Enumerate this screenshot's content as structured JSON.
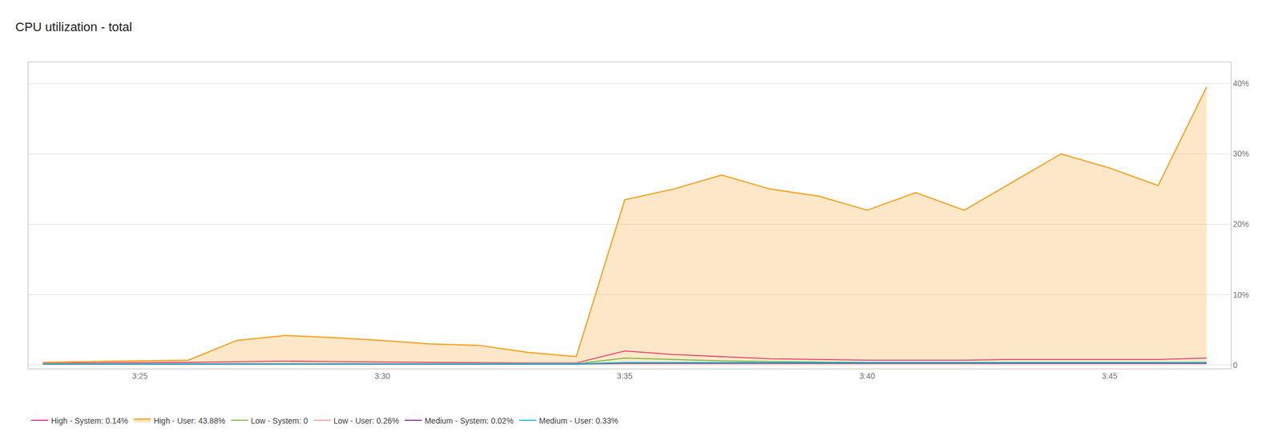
{
  "chart_data": {
    "type": "line",
    "title": "CPU utilization - total",
    "x": [
      0,
      1,
      2,
      3,
      4,
      5,
      6,
      7,
      8,
      9,
      10,
      11,
      12,
      13,
      14,
      15,
      16,
      17,
      18,
      19,
      20,
      21,
      22,
      23,
      24
    ],
    "xlim": [
      -0.3,
      24.5
    ],
    "xticks": [
      {
        "value": 2,
        "label": "3:25"
      },
      {
        "value": 7,
        "label": "3:30"
      },
      {
        "value": 12,
        "label": "3:35"
      },
      {
        "value": 17,
        "label": "3:40"
      },
      {
        "value": 22,
        "label": "3:45"
      }
    ],
    "ylim": [
      -0.5,
      43
    ],
    "yticks": [
      0,
      {
        "value": 10,
        "label": "10%"
      },
      {
        "value": 20,
        "label": "20%"
      },
      {
        "value": 30,
        "label": "30%"
      },
      {
        "value": 40,
        "label": "40%"
      }
    ],
    "grid": "y",
    "legend": "bottom",
    "series": [
      {
        "name": "High - System: 0.14%",
        "color": "#e91e8c",
        "type": "line",
        "values": [
          0.3,
          0.3,
          0.35,
          0.4,
          0.5,
          0.55,
          0.5,
          0.45,
          0.35,
          0.3,
          0.3,
          0.3,
          2.0,
          1.5,
          1.2,
          0.9,
          0.8,
          0.7,
          0.7,
          0.7,
          0.8,
          0.8,
          0.75,
          0.8,
          1.0
        ]
      },
      {
        "name": "High - User: 43.88%",
        "color": "#f4a426",
        "type": "area",
        "values": [
          0.4,
          0.5,
          0.6,
          0.7,
          3.5,
          4.2,
          3.9,
          3.5,
          3.0,
          2.8,
          1.8,
          1.2,
          23.5,
          25.0,
          27.0,
          25.0,
          24.0,
          22.0,
          24.5,
          22.0,
          26.0,
          30.0,
          28.0,
          25.5,
          39.5
        ]
      },
      {
        "name": "Low - System: 0",
        "color": "#7cb342",
        "type": "line",
        "values": [
          0.18,
          0.18,
          0.18,
          0.18,
          0.18,
          0.18,
          0.18,
          0.18,
          0.18,
          0.18,
          0.18,
          0.18,
          1.0,
          0.8,
          0.6,
          0.5,
          0.4,
          0.35,
          0.35,
          0.35,
          0.35,
          0.35,
          0.35,
          0.35,
          0.35
        ]
      },
      {
        "name": "Low - User: 0.26%",
        "color": "#ef9a9a",
        "type": "line",
        "values": [
          0.2,
          0.2,
          0.2,
          0.2,
          0.2,
          0.2,
          0.2,
          0.2,
          0.2,
          0.2,
          0.2,
          0.2,
          0.3,
          0.3,
          0.3,
          0.3,
          0.3,
          0.3,
          0.3,
          0.3,
          0.3,
          0.3,
          0.3,
          0.3,
          0.3
        ]
      },
      {
        "name": "Medium - System: 0.02%",
        "color": "#7b1fa2",
        "type": "line",
        "values": [
          0.15,
          0.15,
          0.15,
          0.15,
          0.15,
          0.15,
          0.15,
          0.15,
          0.15,
          0.15,
          0.15,
          0.15,
          0.25,
          0.25,
          0.25,
          0.25,
          0.25,
          0.25,
          0.25,
          0.25,
          0.25,
          0.25,
          0.25,
          0.25,
          0.25
        ]
      },
      {
        "name": "Medium - User: 0.33%",
        "color": "#00bcd4",
        "type": "line",
        "values": [
          0.18,
          0.18,
          0.18,
          0.18,
          0.18,
          0.18,
          0.18,
          0.18,
          0.18,
          0.18,
          0.18,
          0.18,
          0.35,
          0.35,
          0.35,
          0.35,
          0.35,
          0.35,
          0.35,
          0.35,
          0.35,
          0.35,
          0.35,
          0.35,
          0.35
        ]
      }
    ]
  }
}
